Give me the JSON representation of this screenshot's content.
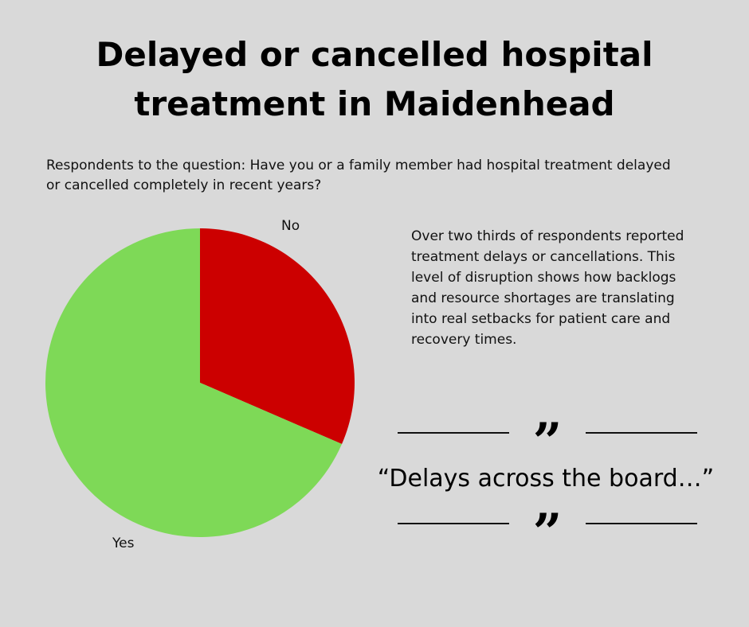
{
  "title_lines": [
    "Delayed or cancelled hospital",
    "treatment in Maidenhead"
  ],
  "subtitle": "Respondents to the question: Have you or a family member had hospital treatment delayed or cancelled completely in recent years?",
  "commentary": "Over two thirds of respondents reported treatment delays or cancellations. This level of disruption shows how backlogs and resource shortages are translating into real setbacks for patient care and recovery times.",
  "quote": {
    "open_mark": "”",
    "close_mark": "”",
    "text": "“Delays across the board…”"
  },
  "colors": {
    "background": "#d9d9d9",
    "yes": "#7ed957",
    "no": "#cc0000"
  },
  "chart_data": {
    "type": "pie",
    "title": "",
    "categories": [
      "No",
      "Yes"
    ],
    "values": [
      31.5,
      68.5
    ],
    "unit": "percent",
    "colors": [
      "#cc0000",
      "#7ed957"
    ],
    "start_angle": "12 o'clock",
    "direction": "clockwise",
    "labels_visible": [
      "No",
      "Yes"
    ]
  }
}
